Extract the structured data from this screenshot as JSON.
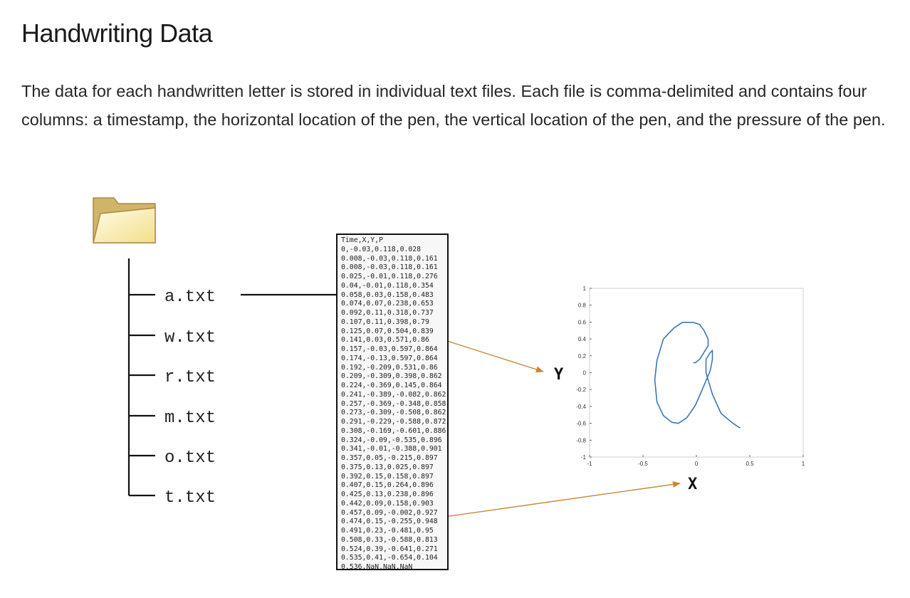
{
  "header": {
    "title": "Handwriting Data",
    "intro": "The data for each handwritten letter is stored in individual text files. Each file is comma-delimited and contains four columns: a timestamp, the horizontal location of the pen, the vertical location of the pen, and the pressure of the pen."
  },
  "diagram": {
    "folder_icon": "folder-icon",
    "files": [
      "a.txt",
      "w.txt",
      "r.txt",
      "m.txt",
      "o.txt",
      "t.txt"
    ],
    "data_lines": [
      "Time,X,Y,P",
      "0,-0.03,0.118,0.028",
      "0.008,-0.03,0.118,0.161",
      "0.008,-0.03,0.118,0.161",
      "0.025,-0.01,0.118,0.276",
      "0.04,-0.01,0.118,0.354",
      "0.058,0.03,0.158,0.483",
      "0.074,0.07,0.238,0.653",
      "0.092,0.11,0.318,0.737",
      "0.107,0.11,0.398,0.79",
      "0.125,0.07,0.504,0.839",
      "0.141,0.03,0.571,0.86",
      "0.157,-0.03,0.597,0.864",
      "0.174,-0.13,0.597,0.864",
      "0.192,-0.209,0.531,0.86",
      "0.209,-0.309,0.398,0.862",
      "0.224,-0.369,0.145,0.864",
      "0.241,-0.389,-0.082,0.862",
      "0.257,-0.369,-0.348,0.858",
      "0.273,-0.309,-0.508,0.862",
      "0.291,-0.229,-0.588,0.872",
      "0.308,-0.169,-0.601,0.886",
      "0.324,-0.09,-0.535,0.896",
      "0.341,-0.01,-0.388,0.901",
      "0.357,0.05,-0.215,0.897",
      "0.375,0.13,0.025,0.897",
      "0.392,0.15,0.158,0.897",
      "0.407,0.15,0.264,0.896",
      "0.425,0.13,0.238,0.896",
      "0.442,0.09,0.158,0.903",
      "0.457,0.09,-0.002,0.927",
      "0.474,0.15,-0.255,0.948",
      "0.491,0.23,-0.481,0.95",
      "0.508,0.33,-0.588,0.813",
      "0.524,0.39,-0.641,0.271",
      "0.535,0.41,-0.654,0.104",
      "0.536,NaN,NaN,NaN"
    ],
    "y_label": "Y",
    "x_label": "X",
    "colors": {
      "arrow": "#c8883a",
      "stroke": "#3a77b5",
      "folder_body": "#fbf3c0",
      "folder_edge": "#a88a43"
    }
  },
  "chart_data": {
    "type": "line",
    "xlim": [
      -1,
      1
    ],
    "ylim": [
      -1,
      1
    ],
    "x_ticks": [
      "-1",
      "-0.5",
      "0",
      "0.5",
      "1"
    ],
    "y_ticks": [
      "1",
      "0.8",
      "0.6",
      "0.4",
      "0.2",
      "0",
      "-0.2",
      "-0.4",
      "-0.6",
      "-0.8",
      "-1"
    ],
    "x": [
      -0.03,
      -0.03,
      -0.03,
      -0.01,
      -0.01,
      0.03,
      0.07,
      0.11,
      0.11,
      0.07,
      0.03,
      -0.03,
      -0.13,
      -0.209,
      -0.309,
      -0.369,
      -0.389,
      -0.369,
      -0.309,
      -0.229,
      -0.169,
      -0.09,
      -0.01,
      0.05,
      0.13,
      0.15,
      0.15,
      0.13,
      0.09,
      0.09,
      0.15,
      0.23,
      0.33,
      0.39,
      0.41
    ],
    "y": [
      0.118,
      0.118,
      0.118,
      0.118,
      0.118,
      0.158,
      0.238,
      0.318,
      0.398,
      0.504,
      0.571,
      0.597,
      0.597,
      0.531,
      0.398,
      0.145,
      -0.082,
      -0.348,
      -0.508,
      -0.588,
      -0.601,
      -0.535,
      -0.388,
      -0.215,
      0.025,
      0.158,
      0.264,
      0.238,
      0.158,
      -0.002,
      -0.255,
      -0.481,
      -0.588,
      -0.641,
      -0.654
    ],
    "grid": false
  }
}
